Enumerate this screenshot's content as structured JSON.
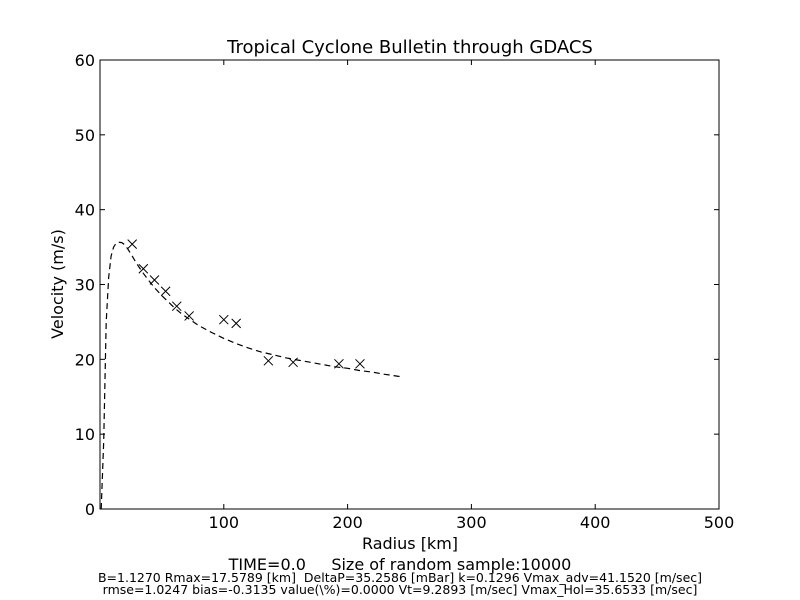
{
  "chart_data": {
    "type": "scatter",
    "title": "Tropical Cyclone Bulletin through GDACS",
    "xlabel": "Radius [km]",
    "ylabel": "Velocity (m/s)",
    "xlim": [
      0,
      500
    ],
    "ylim": [
      0,
      60
    ],
    "xticks": [
      100,
      200,
      300,
      400,
      500
    ],
    "yticks": [
      0,
      10,
      20,
      30,
      40,
      50,
      60
    ],
    "grid": false,
    "series": [
      {
        "kind": "line",
        "style": "dashed",
        "color": "#000000",
        "x": [
          1,
          3,
          5,
          7,
          9,
          11,
          13,
          15,
          17.6,
          20,
          23,
          26,
          30,
          35,
          40,
          45,
          50,
          55,
          60,
          65,
          70,
          80,
          90,
          100,
          110,
          120,
          130,
          140,
          150,
          160,
          170,
          180,
          190,
          200,
          210,
          220,
          230,
          242
        ],
        "y": [
          0,
          9,
          25,
          31,
          33.8,
          35.0,
          35.5,
          35.65,
          35.6,
          35.3,
          34.6,
          33.8,
          32.7,
          31.5,
          30.4,
          29.4,
          28.5,
          27.7,
          26.9,
          26.2,
          25.6,
          24.5,
          23.6,
          22.8,
          22.1,
          21.5,
          21.0,
          20.6,
          20.2,
          19.9,
          19.6,
          19.3,
          19.0,
          18.8,
          18.5,
          18.3,
          18.0,
          17.7
        ]
      },
      {
        "kind": "scatter",
        "marker": "x",
        "color": "#000000",
        "x": [
          26,
          35,
          44,
          53,
          62,
          72,
          100,
          110,
          136,
          156,
          193,
          210
        ],
        "y": [
          35.4,
          32.1,
          30.6,
          29.1,
          27.1,
          25.8,
          25.3,
          24.8,
          19.8,
          19.6,
          19.4,
          19.4
        ]
      }
    ]
  },
  "footer": {
    "line1": "TIME=0.0     Size of random sample:10000",
    "line2": "B=1.1270 Rmax=17.5789 [km]  DeltaP=35.2586 [mBar] k=0.1296 Vmax_adv=41.1520 [m/sec]",
    "line3": "rmse=1.0247 bias=-0.3135 value(\\%)=0.0000 Vt=9.2893 [m/sec] Vmax_Hol=35.6533 [m/sec]"
  }
}
